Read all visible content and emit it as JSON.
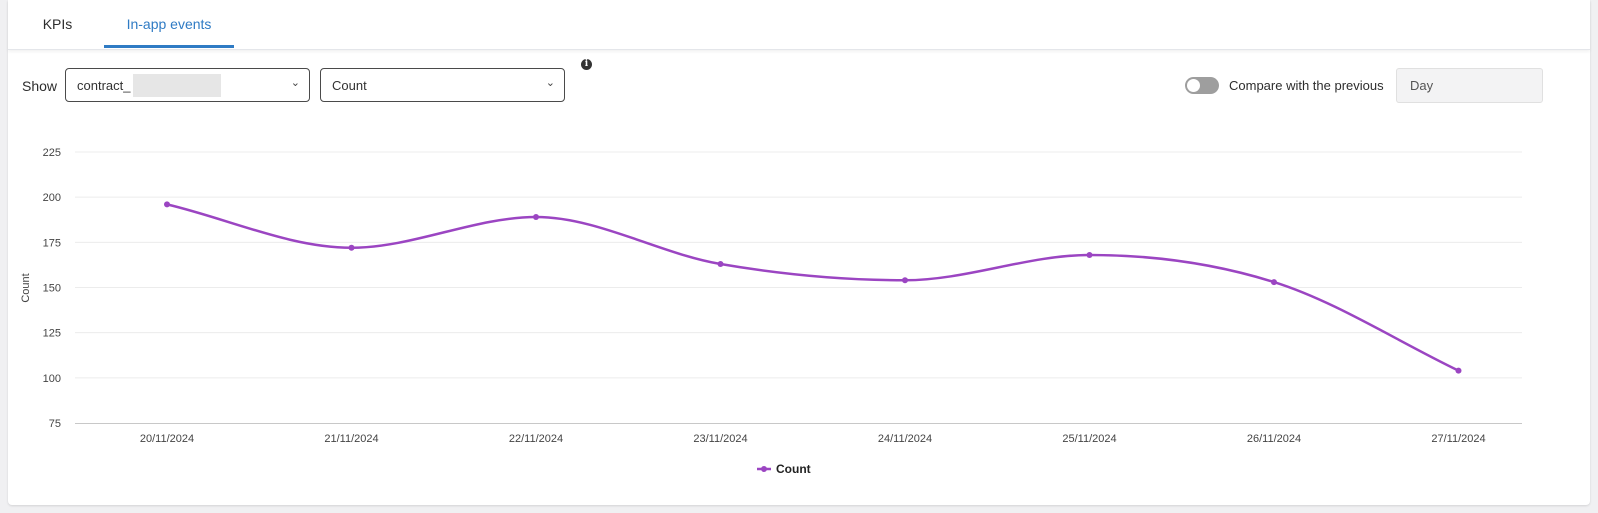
{
  "tabs": [
    {
      "label": "KPIs",
      "active": false
    },
    {
      "label": "In-app events",
      "active": true
    }
  ],
  "controls": {
    "show_label": "Show",
    "event_select": {
      "value": "contract_"
    },
    "metric_select": {
      "value": "Count"
    },
    "info_icon": "info-icon",
    "compare_label": "Compare with the previous",
    "compare_enabled": false,
    "period_value": "Day"
  },
  "colors": {
    "accent": "#2f7bc4",
    "series": "#9b45c2"
  },
  "chart_data": {
    "type": "line",
    "x": [
      "20/11/2024",
      "21/11/2024",
      "22/11/2024",
      "23/11/2024",
      "24/11/2024",
      "25/11/2024",
      "26/11/2024",
      "27/11/2024"
    ],
    "series": [
      {
        "name": "Count",
        "values": [
          196,
          172,
          189,
          163,
          154,
          168,
          153,
          104
        ]
      }
    ],
    "ylabel": "Count",
    "yticks": [
      75,
      100,
      125,
      150,
      175,
      200,
      225
    ],
    "ylim": [
      75,
      225
    ],
    "grid": true,
    "legend": "bottom-center",
    "smooth": true
  }
}
